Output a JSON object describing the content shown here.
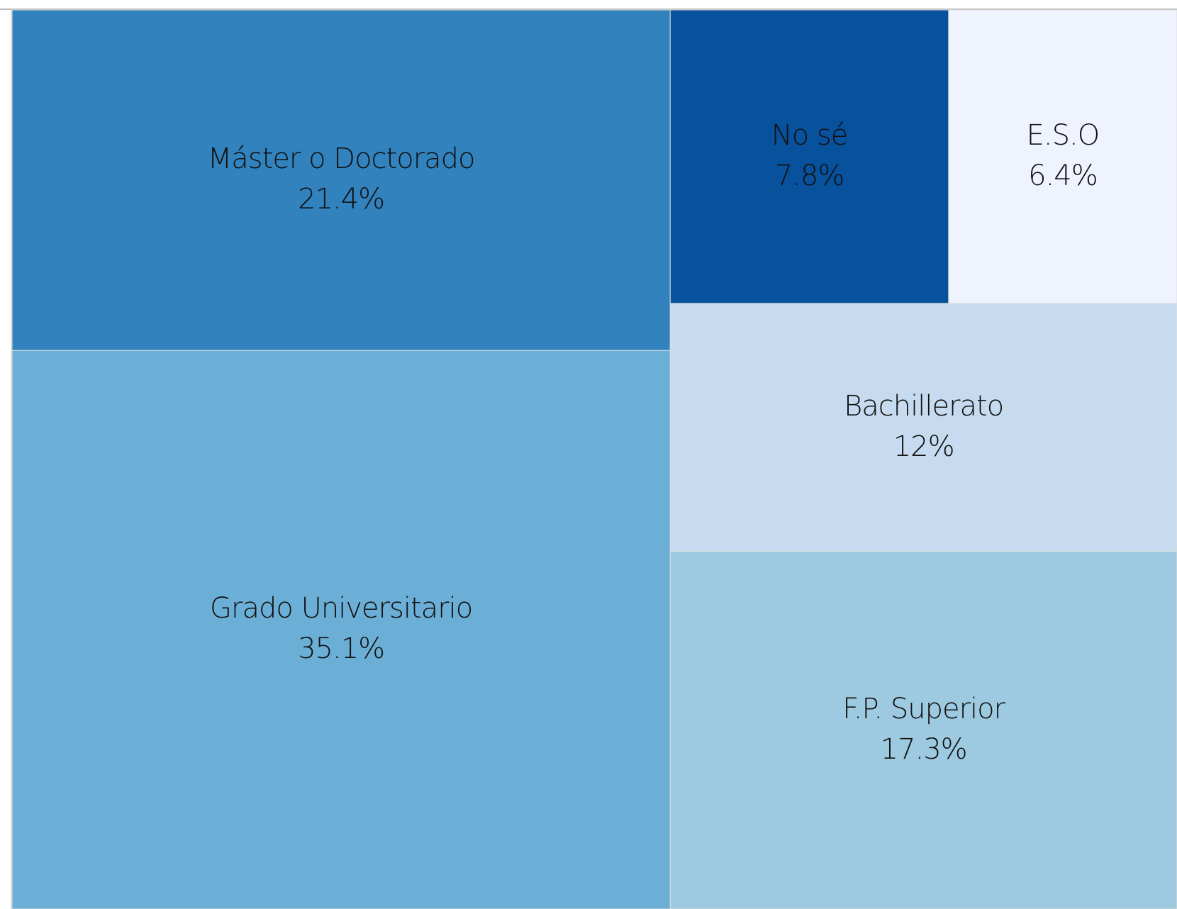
{
  "chart_data": {
    "type": "treemap",
    "categories": [
      "Máster o Doctorado",
      "Grado Universitario",
      "No sé",
      "E.S.O",
      "Bachillerato",
      "F.P. Superior"
    ],
    "values": [
      21.4,
      35.1,
      7.8,
      6.4,
      12,
      17.3
    ],
    "value_labels": [
      "21.4%",
      "35.1%",
      "7.8%",
      "6.4%",
      "12%",
      "17.3%"
    ],
    "colors": [
      "#3282be",
      "#6baed6",
      "#08519c",
      "#eef3fe",
      "#c6dbef",
      "#9ecae1"
    ]
  }
}
